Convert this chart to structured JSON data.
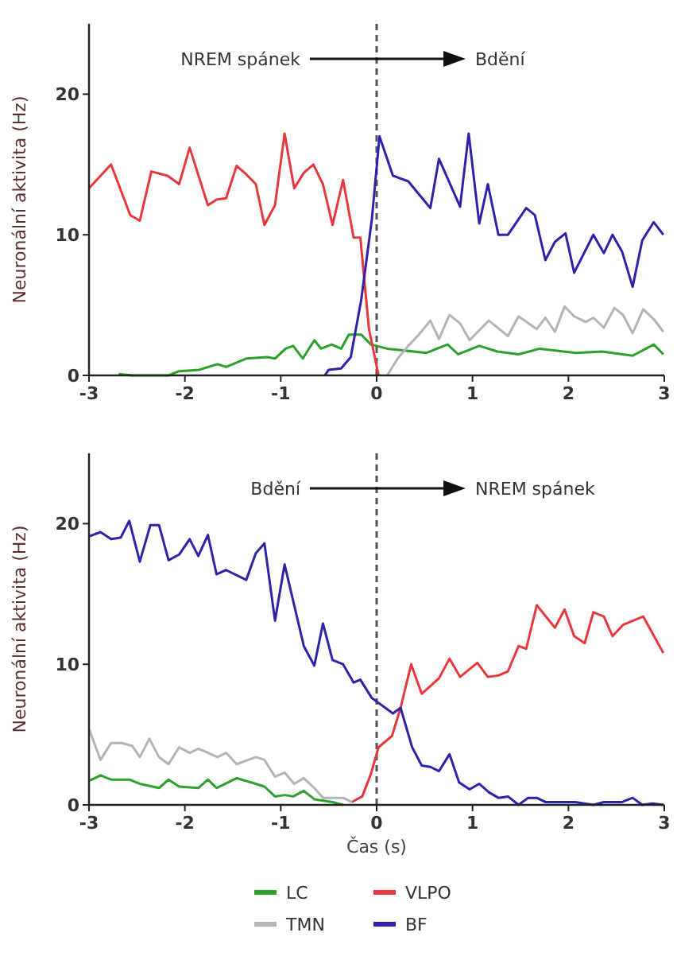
{
  "chart_data": [
    {
      "type": "line",
      "ylabel": "Neuronální aktivita (Hz)",
      "xlim": [
        -3,
        3
      ],
      "xticks": [
        -3,
        -2,
        -1,
        0,
        1,
        2,
        3
      ],
      "ylim": [
        0,
        25
      ],
      "yticks": [
        0,
        10,
        20
      ],
      "grid": false,
      "legend": false,
      "ref_lines": [
        {
          "axis": "x",
          "value": 0,
          "line_style": "dashed",
          "color": "#555555"
        }
      ],
      "annotations": [
        "NREM spánek",
        "Bdění"
      ],
      "series": [
        {
          "color": "#2ca02c",
          "x": [
            -2.69,
            -2.55,
            -2.17,
            -2.06,
            -1.85,
            -1.66,
            -1.57,
            -1.36,
            -1.14,
            -1.06,
            -0.95,
            -0.87,
            -0.77,
            -0.65,
            -0.58,
            -0.47,
            -0.37,
            -0.29,
            -0.16,
            -0.06,
            0.11,
            0.52,
            0.74,
            0.85,
            1.07,
            1.26,
            1.48,
            1.7,
            2.08,
            2.35,
            2.67,
            2.89,
            2.99
          ],
          "values": [
            0.1,
            0,
            0,
            0.3,
            0.4,
            0.8,
            0.6,
            1.2,
            1.3,
            1.2,
            1.9,
            2.1,
            1.2,
            2.5,
            1.9,
            2.2,
            1.9,
            2.9,
            2.9,
            2.2,
            1.9,
            1.6,
            2.2,
            1.5,
            2.1,
            1.7,
            1.5,
            1.9,
            1.6,
            1.7,
            1.4,
            2.2,
            1.5
          ]
        },
        {
          "color": "#e8383d",
          "x": [
            -3,
            -2.77,
            -2.57,
            -2.47,
            -2.35,
            -2.18,
            -2.06,
            -1.95,
            -1.76,
            -1.67,
            -1.57,
            -1.46,
            -1.36,
            -1.26,
            -1.17,
            -1.06,
            -0.96,
            -0.86,
            -0.76,
            -0.66,
            -0.56,
            -0.46,
            -0.35,
            -0.24,
            -0.17,
            -0.08,
            0.02
          ],
          "values": [
            13.3,
            15,
            11.4,
            11,
            14.5,
            14.2,
            13.6,
            16.2,
            12.1,
            12.5,
            12.6,
            14.9,
            14.3,
            13.6,
            10.7,
            12.1,
            17.2,
            13.3,
            14.4,
            15,
            13.6,
            10.7,
            13.9,
            9.8,
            9.8,
            3.3,
            0
          ]
        },
        {
          "color": "#b4b4b4",
          "x": [
            0.11,
            0.22,
            0.33,
            0.44,
            0.56,
            0.65,
            0.76,
            0.87,
            0.97,
            1.17,
            1.37,
            1.48,
            1.67,
            1.76,
            1.86,
            1.96,
            2.06,
            2.18,
            2.26,
            2.37,
            2.48,
            2.57,
            2.67,
            2.78,
            2.89,
            2.99
          ],
          "values": [
            0,
            1.2,
            2.1,
            2.9,
            3.9,
            2.6,
            4.3,
            3.7,
            2.5,
            3.9,
            2.8,
            4.2,
            3.3,
            4.1,
            3.1,
            4.9,
            4.2,
            3.8,
            4.1,
            3.4,
            4.8,
            4.3,
            3,
            4.7,
            4,
            3.1
          ]
        },
        {
          "color": "#2e22a8",
          "x": [
            -0.54,
            -0.5,
            -0.37,
            -0.27,
            -0.16,
            -0.05,
            0.03,
            0.17,
            0.33,
            0.56,
            0.65,
            0.87,
            0.96,
            1.07,
            1.16,
            1.27,
            1.37,
            1.56,
            1.65,
            1.76,
            1.86,
            1.97,
            2.06,
            2.26,
            2.37,
            2.46,
            2.56,
            2.67,
            2.77,
            2.89,
            2.99
          ],
          "values": [
            0,
            0.4,
            0.5,
            1.3,
            5.4,
            11.1,
            17,
            14.2,
            13.8,
            11.9,
            15.4,
            12,
            17.2,
            10.8,
            13.6,
            10,
            10,
            11.9,
            11.4,
            8.2,
            9.5,
            10.1,
            7.3,
            10,
            8.7,
            10,
            8.8,
            6.3,
            9.6,
            10.9,
            10
          ]
        }
      ]
    },
    {
      "type": "line",
      "ylabel": "Neuronální aktivita (Hz)",
      "xlabel": "Čas (s)",
      "xlim": [
        -3,
        3
      ],
      "xticks": [
        -3,
        -2,
        -1,
        0,
        1,
        2,
        3
      ],
      "ylim": [
        0,
        25
      ],
      "yticks": [
        0,
        10,
        20
      ],
      "grid": false,
      "legend": "bottom",
      "ref_lines": [
        {
          "axis": "x",
          "value": 0,
          "line_style": "dashed",
          "color": "#555555"
        }
      ],
      "annotations": [
        "Bdění",
        "NREM spánek"
      ],
      "series": [
        {
          "name": "LC",
          "color": "#2ca02c",
          "x": [
            -3,
            -2.88,
            -2.77,
            -2.58,
            -2.47,
            -2.27,
            -2.17,
            -2.06,
            -1.86,
            -1.76,
            -1.67,
            -1.46,
            -1.26,
            -1.17,
            -1.06,
            -0.96,
            -0.87,
            -0.76,
            -0.65,
            -0.46,
            -0.35
          ],
          "values": [
            1.7,
            2.1,
            1.8,
            1.8,
            1.5,
            1.2,
            1.8,
            1.3,
            1.2,
            1.8,
            1.2,
            1.9,
            1.5,
            1.3,
            0.6,
            0.7,
            0.6,
            1,
            0.4,
            0.2,
            0
          ]
        },
        {
          "name": "VLPO",
          "color": "#e8383d",
          "x": [
            -0.26,
            -0.15,
            -0.06,
            0.02,
            0.16,
            0.25,
            0.36,
            0.47,
            0.65,
            0.76,
            0.87,
            1.05,
            1.16,
            1.27,
            1.37,
            1.48,
            1.56,
            1.67,
            1.86,
            1.96,
            2.06,
            2.17,
            2.26,
            2.37,
            2.46,
            2.57,
            2.78,
            2.99
          ],
          "values": [
            0.2,
            0.6,
            2.2,
            4.1,
            4.9,
            6.9,
            10,
            7.9,
            9,
            10.4,
            9.1,
            10.1,
            9.1,
            9.2,
            9.5,
            11.3,
            11.1,
            14.2,
            12.6,
            13.9,
            12,
            11.5,
            13.7,
            13.4,
            12,
            12.8,
            13.4,
            10.8
          ]
        },
        {
          "name": "TMN",
          "color": "#b4b4b4",
          "x": [
            -3,
            -2.88,
            -2.77,
            -2.66,
            -2.55,
            -2.47,
            -2.37,
            -2.27,
            -2.17,
            -2.06,
            -1.95,
            -1.86,
            -1.66,
            -1.57,
            -1.46,
            -1.26,
            -1.17,
            -1.06,
            -0.96,
            -0.86,
            -0.76,
            -0.65,
            -0.56,
            -0.35,
            -0.26
          ],
          "values": [
            5.4,
            3.2,
            4.4,
            4.4,
            4.2,
            3.4,
            4.7,
            3.4,
            2.9,
            4.1,
            3.7,
            4,
            3.4,
            3.7,
            2.9,
            3.4,
            3.2,
            2,
            2.3,
            1.5,
            1.9,
            1.2,
            0.5,
            0.5,
            0.2
          ]
        },
        {
          "name": "BF",
          "color": "#2e22a8",
          "x": [
            -3,
            -2.88,
            -2.77,
            -2.67,
            -2.58,
            -2.47,
            -2.36,
            -2.27,
            -2.17,
            -2.06,
            -1.95,
            -1.86,
            -1.76,
            -1.67,
            -1.57,
            -1.36,
            -1.26,
            -1.17,
            -1.06,
            -0.96,
            -0.76,
            -0.65,
            -0.56,
            -0.46,
            -0.35,
            -0.24,
            -0.17,
            -0.05,
            0.17,
            0.25,
            0.37,
            0.47,
            0.56,
            0.65,
            0.76,
            0.86,
            0.97,
            1.07,
            1.17,
            1.27,
            1.37,
            1.48,
            1.58,
            1.67,
            1.76,
            2.07,
            2.26,
            2.37,
            2.56,
            2.67,
            2.77,
            2.88,
            2.99
          ],
          "values": [
            19.1,
            19.4,
            18.9,
            19,
            20.2,
            17.3,
            19.9,
            19.9,
            17.4,
            17.8,
            18.9,
            17.7,
            19.2,
            16.4,
            16.7,
            16,
            17.9,
            18.6,
            13.1,
            17.1,
            11.3,
            9.9,
            12.9,
            10.3,
            10,
            8.7,
            8.9,
            7.6,
            6.5,
            6.9,
            4.1,
            2.8,
            2.7,
            2.4,
            3.6,
            1.6,
            1.1,
            1.5,
            0.9,
            0.5,
            0.6,
            0,
            0.5,
            0.5,
            0.2,
            0.2,
            0,
            0.2,
            0.2,
            0.5,
            0,
            0.1,
            0
          ]
        }
      ]
    }
  ]
}
